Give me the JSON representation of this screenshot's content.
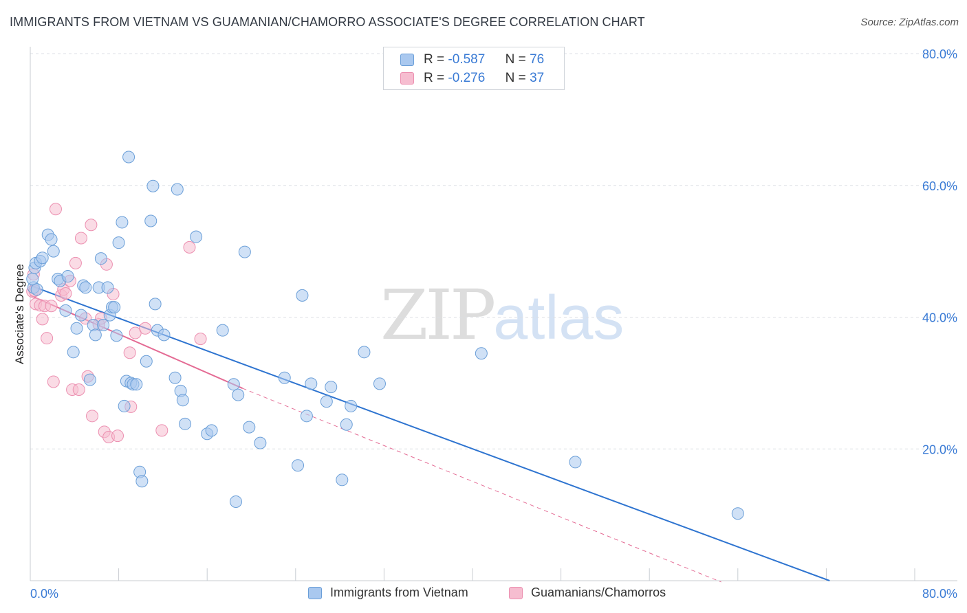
{
  "title": "IMMIGRANTS FROM VIETNAM VS GUAMANIAN/CHAMORRO ASSOCIATE'S DEGREE CORRELATION CHART",
  "source": "Source: ZipAtlas.com",
  "watermark": {
    "zip": "ZIP",
    "atlas": "atlas"
  },
  "legend": {
    "r_label": "R =",
    "n_label": "N =",
    "series1": {
      "r": "-0.587",
      "n": "76"
    },
    "series2": {
      "r": "-0.276",
      "n": "37"
    }
  },
  "colors": {
    "blue_fill": "#a9c8ef",
    "blue_stroke": "#6b9fd8",
    "blue_line": "#2e74d0",
    "pink_fill": "#f6bdd0",
    "pink_stroke": "#ec8fb0",
    "pink_line": "#e46b94",
    "grid": "#dcdfe4",
    "axis_text": "#3a7bd5"
  },
  "chart_data": {
    "type": "scatter",
    "title": "IMMIGRANTS FROM VIETNAM VS GUAMANIAN/CHAMORRO ASSOCIATE'S DEGREE CORRELATION CHART",
    "xlabel": "",
    "ylabel": "Associate's Degree",
    "xlim": [
      0,
      80
    ],
    "ylim": [
      0,
      80
    ],
    "x_tick_labels": [
      "0.0%",
      "80.0%"
    ],
    "y_ticks": [
      20,
      40,
      60,
      80
    ],
    "y_tick_labels": [
      "20.0%",
      "40.0%",
      "60.0%",
      "80.0%"
    ],
    "grid": true,
    "series": [
      {
        "name": "Immigrants from Vietnam",
        "color": "#a9c8ef",
        "points": [
          [
            0.3,
            44.5
          ],
          [
            0.4,
            47.5
          ],
          [
            0.5,
            48.2
          ],
          [
            0.9,
            48.5
          ],
          [
            1.1,
            49.0
          ],
          [
            1.6,
            52.5
          ],
          [
            1.9,
            51.8
          ],
          [
            2.1,
            50.0
          ],
          [
            2.5,
            45.8
          ],
          [
            2.7,
            45.5
          ],
          [
            3.2,
            41.0
          ],
          [
            3.4,
            46.2
          ],
          [
            3.9,
            34.7
          ],
          [
            4.2,
            38.3
          ],
          [
            4.6,
            40.3
          ],
          [
            4.8,
            44.8
          ],
          [
            5.0,
            44.5
          ],
          [
            5.4,
            30.5
          ],
          [
            5.7,
            38.8
          ],
          [
            5.9,
            37.3
          ],
          [
            6.2,
            44.5
          ],
          [
            6.4,
            48.9
          ],
          [
            6.6,
            38.8
          ],
          [
            7.0,
            44.5
          ],
          [
            7.2,
            40.3
          ],
          [
            7.4,
            41.5
          ],
          [
            7.6,
            41.5
          ],
          [
            7.8,
            37.2
          ],
          [
            8.0,
            51.3
          ],
          [
            8.3,
            54.4
          ],
          [
            8.5,
            26.5
          ],
          [
            8.7,
            30.3
          ],
          [
            8.9,
            64.3
          ],
          [
            9.1,
            30.0
          ],
          [
            9.3,
            29.8
          ],
          [
            9.6,
            29.8
          ],
          [
            9.9,
            16.5
          ],
          [
            10.1,
            15.1
          ],
          [
            10.5,
            33.3
          ],
          [
            10.9,
            54.6
          ],
          [
            11.1,
            59.9
          ],
          [
            11.3,
            42.0
          ],
          [
            11.5,
            38.0
          ],
          [
            12.1,
            37.3
          ],
          [
            13.1,
            30.8
          ],
          [
            13.3,
            59.4
          ],
          [
            13.6,
            28.8
          ],
          [
            13.8,
            27.4
          ],
          [
            14.0,
            23.8
          ],
          [
            15.0,
            52.2
          ],
          [
            16.0,
            22.3
          ],
          [
            16.4,
            22.8
          ],
          [
            17.4,
            38.0
          ],
          [
            18.4,
            29.8
          ],
          [
            18.6,
            12.0
          ],
          [
            18.8,
            28.2
          ],
          [
            19.4,
            49.9
          ],
          [
            19.8,
            23.3
          ],
          [
            20.8,
            20.9
          ],
          [
            23.0,
            30.8
          ],
          [
            24.2,
            17.5
          ],
          [
            24.6,
            43.3
          ],
          [
            25.0,
            25.0
          ],
          [
            25.4,
            29.9
          ],
          [
            26.8,
            27.2
          ],
          [
            27.2,
            29.4
          ],
          [
            28.2,
            15.3
          ],
          [
            28.6,
            23.7
          ],
          [
            29.0,
            26.5
          ],
          [
            30.2,
            34.7
          ],
          [
            31.6,
            29.9
          ],
          [
            40.8,
            34.5
          ],
          [
            49.3,
            18.0
          ],
          [
            64.0,
            10.2
          ],
          [
            0.2,
            45.8
          ],
          [
            0.6,
            44.2
          ]
        ]
      },
      {
        "name": "Guamanians/Chamorros",
        "color": "#f6bdd0",
        "points": [
          [
            0.2,
            43.9
          ],
          [
            0.3,
            46.5
          ],
          [
            0.5,
            42.0
          ],
          [
            0.9,
            41.8
          ],
          [
            1.1,
            39.7
          ],
          [
            1.3,
            41.7
          ],
          [
            1.5,
            36.8
          ],
          [
            1.9,
            41.7
          ],
          [
            2.1,
            30.2
          ],
          [
            2.3,
            56.4
          ],
          [
            2.8,
            43.3
          ],
          [
            3.0,
            44.2
          ],
          [
            3.2,
            43.6
          ],
          [
            3.6,
            45.5
          ],
          [
            3.8,
            29.0
          ],
          [
            4.1,
            48.2
          ],
          [
            4.4,
            29.0
          ],
          [
            4.6,
            52.0
          ],
          [
            5.0,
            39.8
          ],
          [
            5.2,
            31.0
          ],
          [
            5.5,
            54.0
          ],
          [
            5.6,
            25.0
          ],
          [
            6.2,
            38.9
          ],
          [
            6.4,
            39.8
          ],
          [
            6.7,
            22.6
          ],
          [
            6.9,
            48.0
          ],
          [
            7.1,
            21.8
          ],
          [
            7.5,
            43.5
          ],
          [
            7.9,
            22.0
          ],
          [
            9.0,
            34.6
          ],
          [
            9.1,
            26.4
          ],
          [
            9.5,
            37.6
          ],
          [
            10.4,
            38.3
          ],
          [
            11.9,
            22.8
          ],
          [
            14.4,
            50.6
          ],
          [
            15.4,
            36.7
          ],
          [
            0.4,
            44.0
          ]
        ]
      }
    ],
    "trend_lines": [
      {
        "series": "Immigrants from Vietnam",
        "x": [
          0,
          72.3
        ],
        "y": [
          44.8,
          0
        ],
        "style": "solid"
      },
      {
        "series": "Guamanians/Chamorros",
        "x": [
          0,
          19.2
        ],
        "y": [
          43.3,
          29.2
        ],
        "style": "solid"
      },
      {
        "series": "Guamanians/Chamorros",
        "x": [
          19.2,
          62.5
        ],
        "y": [
          29.2,
          -0.2
        ],
        "style": "dashed"
      }
    ]
  },
  "bottom_legend": {
    "item1": "Immigrants from Vietnam",
    "item2": "Guamanians/Chamorros"
  }
}
